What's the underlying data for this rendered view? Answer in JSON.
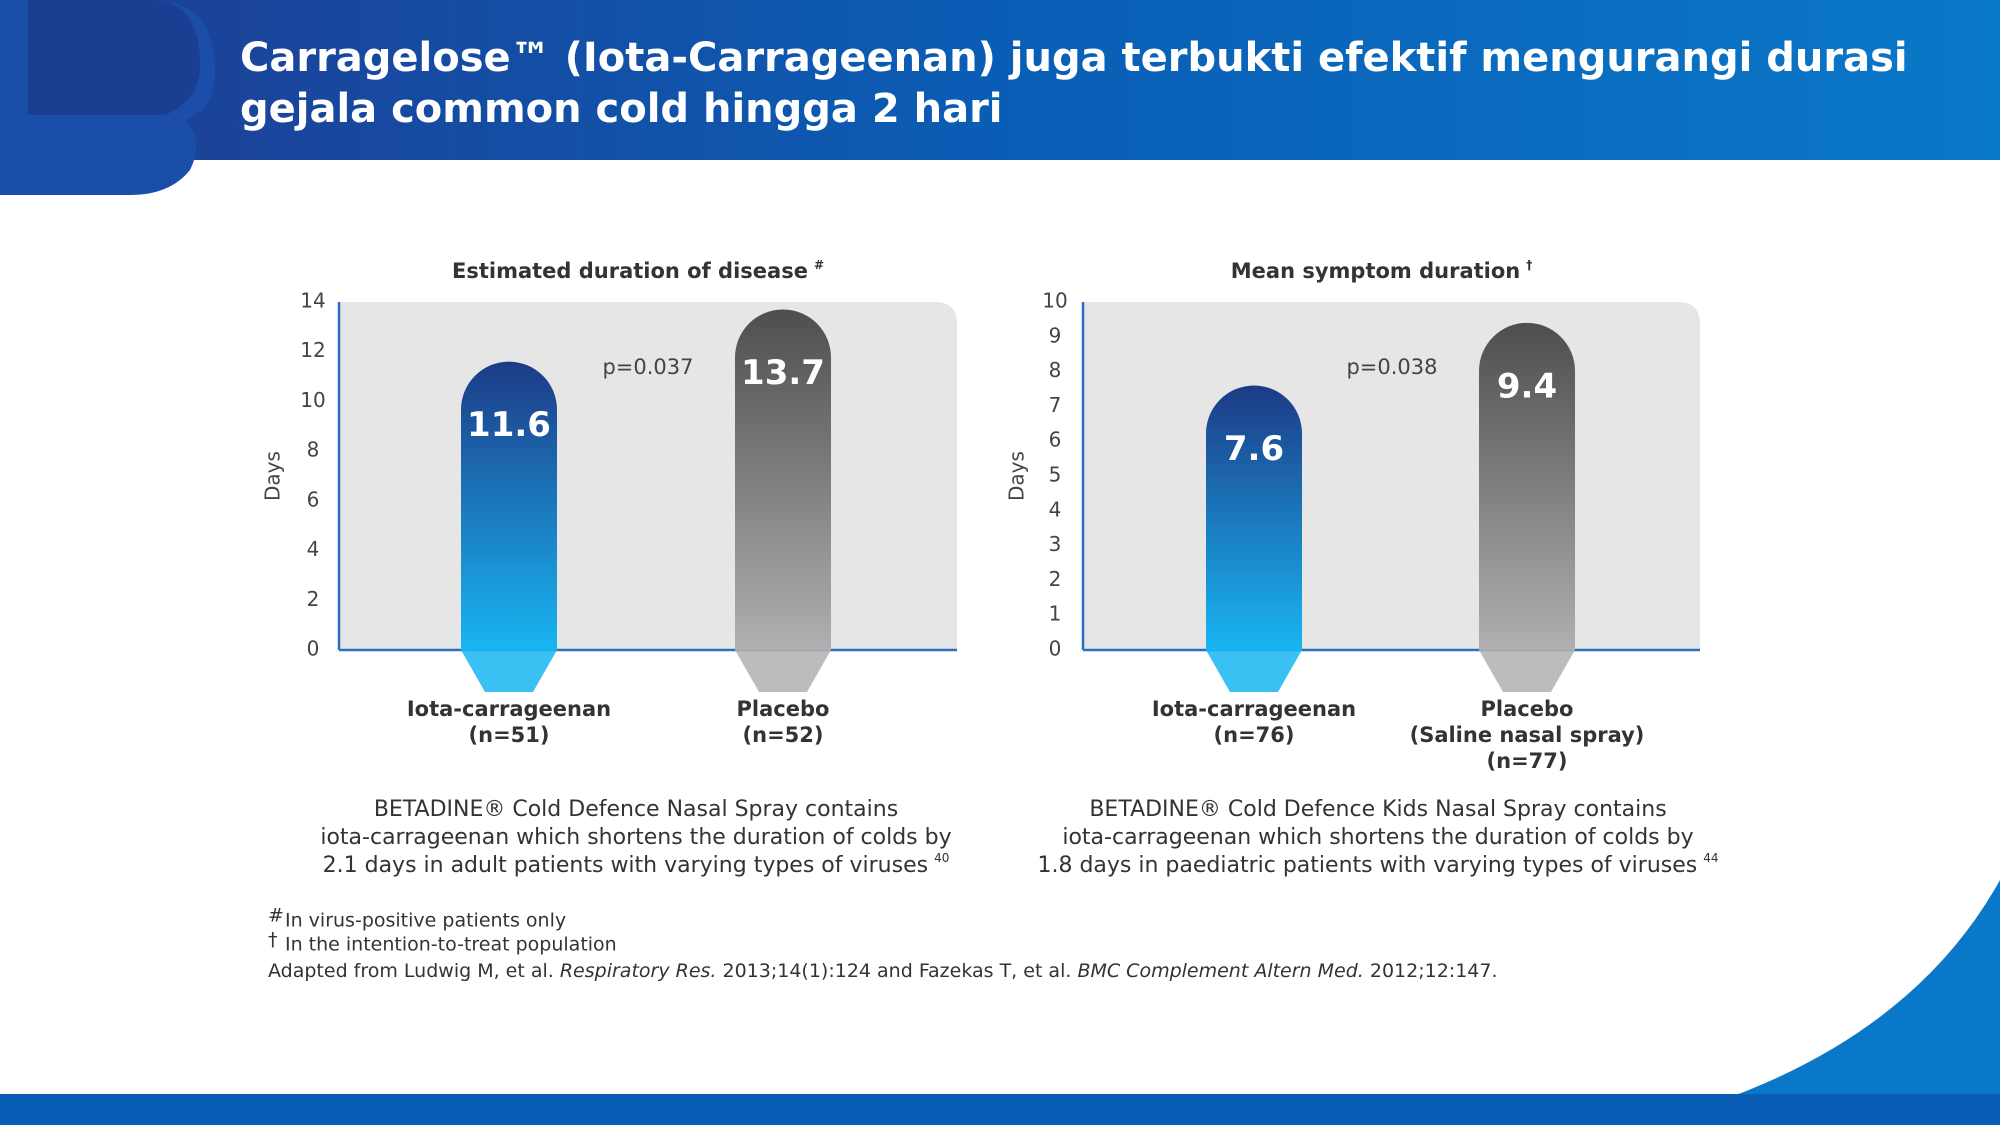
{
  "header": {
    "title_lines": [
      "Carragelose™ (Iota-Carrageenan) juga terbukti efektif mengurangi durasi",
      "gejala common cold hingga 2 hari"
    ]
  },
  "chart_data": [
    {
      "type": "bar",
      "title": "Estimated duration of disease",
      "title_mark": "#",
      "y_label": "Days",
      "categories": [
        [
          "Iota-carrageenan",
          "(n=51)"
        ],
        [
          "Placebo",
          "(n=52)"
        ]
      ],
      "values": [
        11.6,
        13.7
      ],
      "colors": [
        [
          "#1d3b86",
          "#19b5f2"
        ],
        [
          "#4e4e4e",
          "#b0b0b0"
        ]
      ],
      "ylim": [
        0,
        14
      ],
      "yticks": [
        0,
        2,
        4,
        6,
        8,
        10,
        12,
        14
      ],
      "annotation": "p=0.037",
      "caption": [
        "BETADINE® Cold Defence Nasal Spray contains",
        "iota-carrageenan which shortens the duration of colds by",
        "2.1 days in adult patients with varying types of viruses"
      ],
      "caption_ref": "40"
    },
    {
      "type": "bar",
      "title": "Mean symptom duration",
      "title_mark": "†",
      "y_label": "Days",
      "categories": [
        [
          "Iota-carrageenan",
          "(n=76)"
        ],
        [
          "Placebo",
          "(Saline nasal spray)",
          "(n=77)"
        ]
      ],
      "values": [
        7.6,
        9.4
      ],
      "colors": [
        [
          "#1d3b86",
          "#19b5f2"
        ],
        [
          "#4e4e4e",
          "#b0b0b0"
        ]
      ],
      "ylim": [
        0,
        10
      ],
      "yticks": [
        0,
        1,
        2,
        3,
        4,
        5,
        6,
        7,
        8,
        9,
        10
      ],
      "annotation": "p=0.038",
      "caption": [
        "BETADINE® Cold Defence Kids Nasal Spray contains",
        "iota-carrageenan which shortens the duration of colds by",
        "1.8 days in paediatric patients with varying types of viruses"
      ],
      "caption_ref": "44"
    }
  ],
  "footnotes": [
    {
      "mark": "#",
      "text": "In virus-positive patients only"
    },
    {
      "mark": "†",
      "text": "In the intention-to-treat population"
    }
  ],
  "source": [
    {
      "text": "Adapted from Ludwig M, et al. ",
      "italic": false
    },
    {
      "text": "Respiratory Res.",
      "italic": true
    },
    {
      "text": " 2013;14(1):124 and Fazekas T, et al. ",
      "italic": false
    },
    {
      "text": "BMC Complement Altern Med.",
      "italic": true
    },
    {
      "text": " 2012;12:147.",
      "italic": false
    }
  ]
}
